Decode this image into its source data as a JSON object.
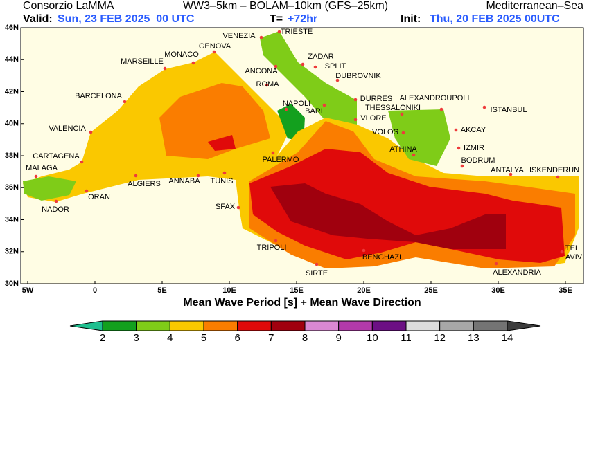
{
  "header": {
    "left": "Consorzio LaMMA",
    "center": "WW3–5km – BOLAM–10km (GFS–25km)",
    "right": "Mediterranean–Sea",
    "valid_label": "Valid:",
    "valid_time": "Sun, 23 FEB 2025  00 UTC",
    "lead_label": "T=",
    "lead_time": "+72hr",
    "init_label": "Init:",
    "init_time": "Thu, 20 FEB 2025 00UTC"
  },
  "map": {
    "title": "Mean Wave Period [s] + Mean Wave Direction",
    "lat_ticks": [
      {
        "value": 30,
        "label": "30N"
      },
      {
        "value": 32,
        "label": "32N"
      },
      {
        "value": 34,
        "label": "34N"
      },
      {
        "value": 36,
        "label": "36N"
      },
      {
        "value": 38,
        "label": "38N"
      },
      {
        "value": 40,
        "label": "40N"
      },
      {
        "value": 42,
        "label": "42N"
      },
      {
        "value": 44,
        "label": "44N"
      },
      {
        "value": 46,
        "label": "46N"
      }
    ],
    "lon_ticks": [
      {
        "value": -5,
        "label": "5W"
      },
      {
        "value": 0,
        "label": "0"
      },
      {
        "value": 5,
        "label": "5E"
      },
      {
        "value": 10,
        "label": "10E"
      },
      {
        "value": 15,
        "label": "15E"
      },
      {
        "value": 20,
        "label": "20E"
      },
      {
        "value": 25,
        "label": "25E"
      },
      {
        "value": 30,
        "label": "30E"
      },
      {
        "value": 35,
        "label": "35E"
      }
    ],
    "cities": [
      "VENEZIA",
      "TRIESTE",
      "GENOVA",
      "MONACO",
      "MARSEILLE",
      "ZADAR",
      "SPLIT",
      "ANCONA",
      "DUBROVNIK",
      "ROMA",
      "BARCELONA",
      "DURRES",
      "ALEXANDROUPOLI",
      "NAPOLI",
      "BARI",
      "THESSALONIKI",
      "ISTANBUL",
      "VLORE",
      "VALENCIA",
      "VOLOS",
      "AKCAY",
      "IZMIR",
      "ATHINA",
      "CARTAGENA",
      "PALERMO",
      "BODRUM",
      "ANTALYA",
      "ISKENDERUN",
      "MALAGA",
      "TUNIS",
      "ANNABA",
      "ALGIERS",
      "ORAN",
      "NADOR",
      "SFAX",
      "TRIPOLI",
      "BENGHAZI",
      "SIRTE",
      "TEL",
      "AVIV",
      "ALEXANDRIA"
    ]
  },
  "colorbar": {
    "levels": [
      2,
      3,
      4,
      5,
      6,
      7,
      8,
      9,
      10,
      11,
      12,
      13,
      14
    ],
    "colors": [
      "#1fbf8f",
      "#13a01e",
      "#7fcc18",
      "#fac800",
      "#fa7d00",
      "#e00a0a",
      "#a0000e",
      "#da88d2",
      "#b23aaa",
      "#6c1084",
      "#dcdcdc",
      "#a8a8a8",
      "#747474",
      "#3c3c3c"
    ]
  }
}
